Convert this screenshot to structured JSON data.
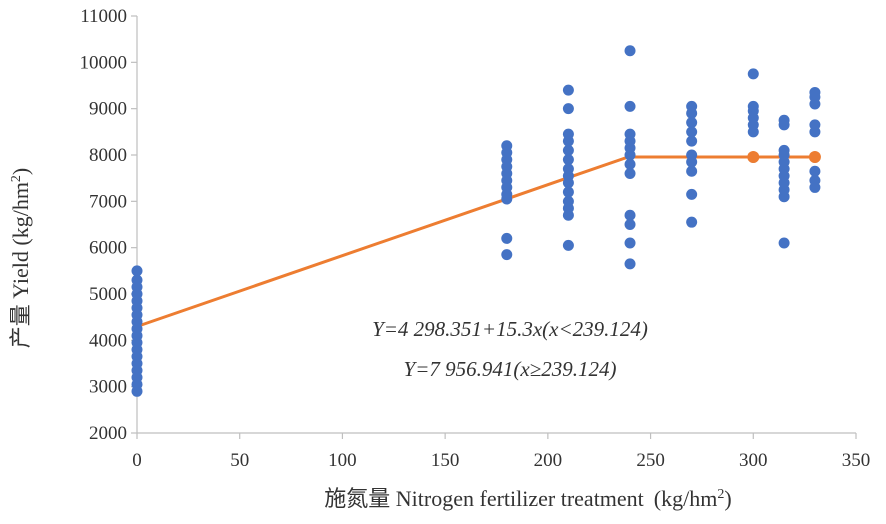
{
  "chart_data": {
    "type": "scatter",
    "title": "",
    "xlabel": "施氮量 Nitrogen fertilizer treatment",
    "xlabel_unit_base": "(kg/hm",
    "xlabel_unit_sup": "2",
    "xlabel_unit_end": ")",
    "ylabel": "产量 Yield (kg/hm",
    "ylabel_sup": "2",
    "ylabel_end": ")",
    "xlim": [
      0,
      350
    ],
    "ylim": [
      2000,
      11000
    ],
    "x_ticks": [
      0,
      50,
      100,
      150,
      200,
      250,
      300,
      350
    ],
    "y_ticks": [
      2000,
      3000,
      4000,
      5000,
      6000,
      7000,
      8000,
      9000,
      10000,
      11000
    ],
    "grid": false,
    "series": [
      {
        "kind": "observed",
        "color": "#4472C4",
        "points": [
          {
            "x": 0,
            "y": 2900
          },
          {
            "x": 0,
            "y": 3050
          },
          {
            "x": 0,
            "y": 3200
          },
          {
            "x": 0,
            "y": 3350
          },
          {
            "x": 0,
            "y": 3500
          },
          {
            "x": 0,
            "y": 3650
          },
          {
            "x": 0,
            "y": 3800
          },
          {
            "x": 0,
            "y": 3950
          },
          {
            "x": 0,
            "y": 4100
          },
          {
            "x": 0,
            "y": 4250
          },
          {
            "x": 0,
            "y": 4400
          },
          {
            "x": 0,
            "y": 4550
          },
          {
            "x": 0,
            "y": 4700
          },
          {
            "x": 0,
            "y": 4850
          },
          {
            "x": 0,
            "y": 5000
          },
          {
            "x": 0,
            "y": 5150
          },
          {
            "x": 0,
            "y": 5300
          },
          {
            "x": 0,
            "y": 5500
          },
          {
            "x": 180,
            "y": 5850
          },
          {
            "x": 180,
            "y": 6200
          },
          {
            "x": 180,
            "y": 7050
          },
          {
            "x": 180,
            "y": 7150
          },
          {
            "x": 180,
            "y": 7300
          },
          {
            "x": 180,
            "y": 7450
          },
          {
            "x": 180,
            "y": 7600
          },
          {
            "x": 180,
            "y": 7750
          },
          {
            "x": 180,
            "y": 7900
          },
          {
            "x": 180,
            "y": 8050
          },
          {
            "x": 180,
            "y": 8200
          },
          {
            "x": 210,
            "y": 6050
          },
          {
            "x": 210,
            "y": 6700
          },
          {
            "x": 210,
            "y": 6850
          },
          {
            "x": 210,
            "y": 7000
          },
          {
            "x": 210,
            "y": 7200
          },
          {
            "x": 210,
            "y": 7400
          },
          {
            "x": 210,
            "y": 7550
          },
          {
            "x": 210,
            "y": 7700
          },
          {
            "x": 210,
            "y": 7900
          },
          {
            "x": 210,
            "y": 8100
          },
          {
            "x": 210,
            "y": 8300
          },
          {
            "x": 210,
            "y": 8450
          },
          {
            "x": 210,
            "y": 9000
          },
          {
            "x": 210,
            "y": 9400
          },
          {
            "x": 240,
            "y": 5650
          },
          {
            "x": 240,
            "y": 6100
          },
          {
            "x": 240,
            "y": 6500
          },
          {
            "x": 240,
            "y": 6700
          },
          {
            "x": 240,
            "y": 7600
          },
          {
            "x": 240,
            "y": 7800
          },
          {
            "x": 240,
            "y": 8000
          },
          {
            "x": 240,
            "y": 8150
          },
          {
            "x": 240,
            "y": 8300
          },
          {
            "x": 240,
            "y": 8450
          },
          {
            "x": 240,
            "y": 9050
          },
          {
            "x": 240,
            "y": 10250
          },
          {
            "x": 270,
            "y": 6550
          },
          {
            "x": 270,
            "y": 7150
          },
          {
            "x": 270,
            "y": 7650
          },
          {
            "x": 270,
            "y": 7850
          },
          {
            "x": 270,
            "y": 8000
          },
          {
            "x": 270,
            "y": 8300
          },
          {
            "x": 270,
            "y": 8500
          },
          {
            "x": 270,
            "y": 8700
          },
          {
            "x": 270,
            "y": 8900
          },
          {
            "x": 270,
            "y": 9050
          },
          {
            "x": 300,
            "y": 7950
          },
          {
            "x": 300,
            "y": 8500
          },
          {
            "x": 300,
            "y": 8650
          },
          {
            "x": 300,
            "y": 8800
          },
          {
            "x": 300,
            "y": 8950
          },
          {
            "x": 300,
            "y": 9050
          },
          {
            "x": 300,
            "y": 9750
          },
          {
            "x": 315,
            "y": 6100
          },
          {
            "x": 315,
            "y": 7100
          },
          {
            "x": 315,
            "y": 7250
          },
          {
            "x": 315,
            "y": 7400
          },
          {
            "x": 315,
            "y": 7550
          },
          {
            "x": 315,
            "y": 7700
          },
          {
            "x": 315,
            "y": 7850
          },
          {
            "x": 315,
            "y": 8000
          },
          {
            "x": 315,
            "y": 8100
          },
          {
            "x": 315,
            "y": 8650
          },
          {
            "x": 315,
            "y": 8750
          },
          {
            "x": 330,
            "y": 7300
          },
          {
            "x": 330,
            "y": 7450
          },
          {
            "x": 330,
            "y": 7650
          },
          {
            "x": 330,
            "y": 7950
          },
          {
            "x": 330,
            "y": 8500
          },
          {
            "x": 330,
            "y": 8650
          },
          {
            "x": 330,
            "y": 9100
          },
          {
            "x": 330,
            "y": 9250
          },
          {
            "x": 330,
            "y": 9350
          }
        ]
      },
      {
        "kind": "fitted",
        "color": "#ED7D31",
        "line_points": [
          {
            "x": 0,
            "y": 4298.351
          },
          {
            "x": 180,
            "y": 7052.351
          },
          {
            "x": 210,
            "y": 7511.351
          },
          {
            "x": 239.124,
            "y": 7956.941
          },
          {
            "x": 270,
            "y": 7956.941
          },
          {
            "x": 300,
            "y": 7956.941
          },
          {
            "x": 315,
            "y": 7956.941
          },
          {
            "x": 330,
            "y": 7956.941
          }
        ],
        "markers_visible": [
          {
            "x": 300,
            "y": 7956.941
          },
          {
            "x": 330,
            "y": 7956.941
          }
        ]
      }
    ],
    "annotations": [
      {
        "id": "eq1",
        "text": "Y=4 298.351+15.3x(x<239.124)"
      },
      {
        "id": "eq2",
        "text": "Y=7 956.941(x≥239.124)"
      }
    ]
  }
}
